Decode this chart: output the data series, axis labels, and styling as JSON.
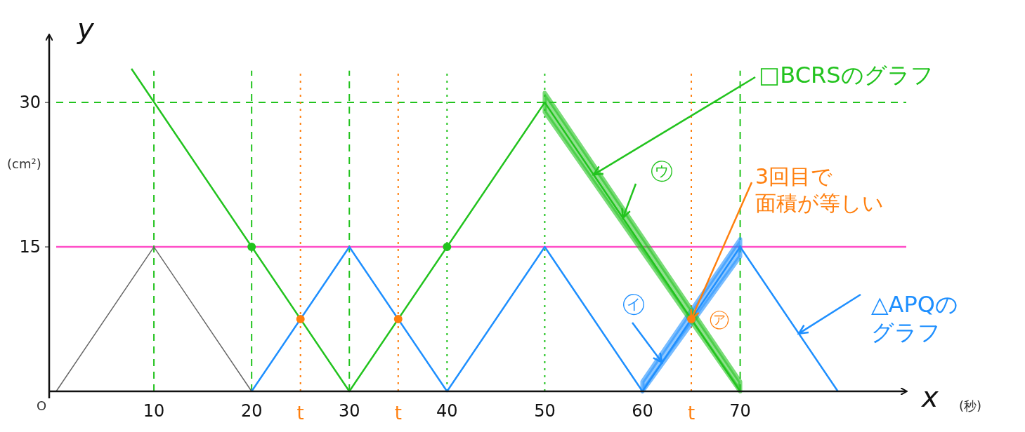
{
  "chart_data": {
    "type": "line",
    "xlabel": "x",
    "ylabel": "y",
    "xlim": [
      0,
      87
    ],
    "ylim": [
      0,
      37
    ],
    "xticks": [
      10,
      20,
      30,
      40,
      50,
      60,
      70
    ],
    "yticks": [
      15,
      30
    ],
    "grid": false,
    "series": [
      {
        "color": "#666666",
        "x": [
          0,
          10,
          20
        ],
        "values": [
          0,
          15,
          0
        ]
      },
      {
        "color": "#1e8fff",
        "x": [
          20,
          30,
          40,
          50,
          60,
          70,
          80
        ],
        "values": [
          0,
          15,
          0,
          15,
          0,
          15,
          0
        ],
        "lower": [
          null,
          null,
          null,
          null,
          0,
          14,
          null
        ],
        "upper": [
          null,
          null,
          null,
          null,
          1,
          15.8,
          null
        ]
      },
      {
        "color": "#22c31e",
        "x": [
          7.7,
          30,
          50,
          70
        ],
        "values": [
          33.5,
          0,
          30,
          0
        ],
        "lower": [
          null,
          null,
          29,
          0
        ],
        "upper": [
          null,
          null,
          31,
          1
        ]
      },
      {
        "type": "scatter",
        "color": "#22c31e",
        "x": [
          20,
          40
        ],
        "values": [
          15,
          15
        ]
      },
      {
        "type": "scatter",
        "color": "#ff7f0e",
        "x": [
          25,
          35,
          65
        ],
        "values": [
          7.5,
          7.5,
          7.5
        ]
      }
    ],
    "ref_lines": [
      {
        "axis": "y",
        "value": 15,
        "color": "#ff4fc8",
        "line_style": "solid"
      },
      {
        "axis": "y",
        "value": 30,
        "color": "#22c31e",
        "line_style": "dashed"
      },
      {
        "axis": "x",
        "value": 10,
        "color": "#22c31e",
        "line_style": "dashed"
      },
      {
        "axis": "x",
        "value": 20,
        "color": "#22c31e",
        "line_style": "dashed"
      },
      {
        "axis": "x",
        "value": 30,
        "color": "#22c31e",
        "line_style": "dashed"
      },
      {
        "axis": "x",
        "value": 40,
        "color": "#22c31e",
        "line_style": "dotted"
      },
      {
        "axis": "x",
        "value": 50,
        "color": "#22c31e",
        "line_style": "dotted"
      },
      {
        "axis": "x",
        "value": 70,
        "color": "#22c31e",
        "line_style": "dashed"
      },
      {
        "axis": "x",
        "value": 25,
        "color": "#ff7f0e",
        "line_style": "dotted"
      },
      {
        "axis": "x",
        "value": 35,
        "color": "#ff7f0e",
        "line_style": "dotted"
      },
      {
        "axis": "x",
        "value": 65,
        "color": "#ff7f0e",
        "line_style": "dotted"
      }
    ],
    "annotations": [
      {
        "text": "□BCRSのグラフ",
        "x": 55,
        "y": 22.5
      },
      {
        "text": "㋒",
        "x": 58,
        "y": 18
      },
      {
        "text": "3回目で面積が等しい",
        "x": 65,
        "y": 7.5
      },
      {
        "text": "㋑",
        "x": 62,
        "y": 3
      },
      {
        "text": "㋐",
        "x": 65,
        "y": 7.5
      },
      {
        "text": "△APQのグラフ",
        "x": 76,
        "y": 6
      },
      {
        "text": "t",
        "x": 25,
        "y": 0
      },
      {
        "text": "t",
        "x": 35,
        "y": 0
      },
      {
        "text": "t",
        "x": 65,
        "y": 0
      },
      "(cm²)",
      "(秒)",
      "O"
    ]
  }
}
